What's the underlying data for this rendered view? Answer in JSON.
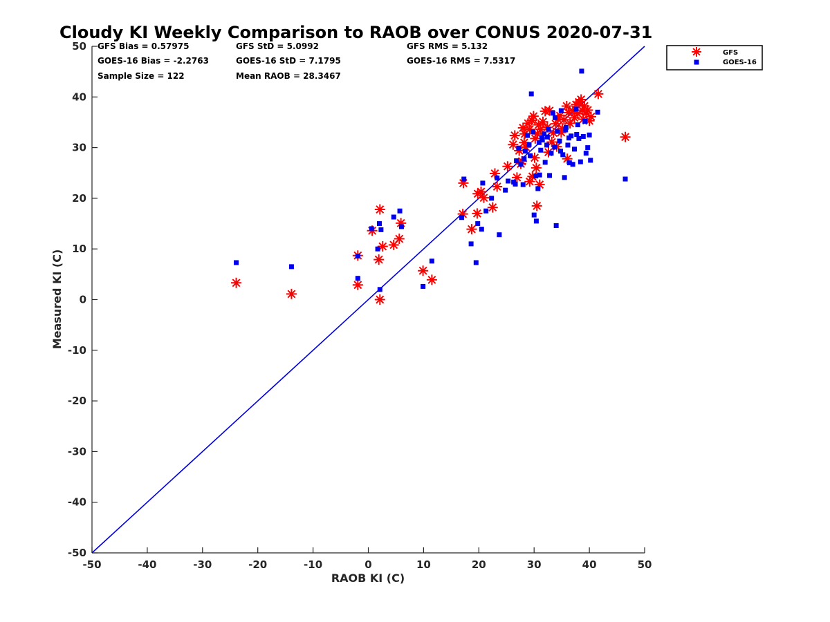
{
  "chart_data": {
    "type": "scatter",
    "title": "Cloudy KI Weekly Comparison to RAOB over CONUS 2020-07-31",
    "xlabel": "RAOB KI (C)",
    "ylabel": "Measured KI (C)",
    "xlim": [
      -50,
      50
    ],
    "ylim": [
      -50,
      50
    ],
    "xticks": [
      "-50",
      "-40",
      "-30",
      "-20",
      "-10",
      "0",
      "10",
      "20",
      "30",
      "40",
      "50"
    ],
    "yticks": [
      "-50",
      "-40",
      "-30",
      "-20",
      "-10",
      "0",
      "10",
      "20",
      "30",
      "40",
      "50"
    ],
    "grid": false,
    "legend_position": "outside-top-right",
    "reference_line": {
      "type": "one-to-one",
      "color": "#0000dd"
    },
    "stats": [
      "GFS Bias = 0.57975",
      "GFS StD = 5.0992",
      "GFS RMS = 5.132",
      "GOES-16 Bias = -2.2763",
      "GOES-16 StD = 7.1795",
      "GOES-16 RMS = 7.5317",
      "Sample Size = 122",
      "Mean RAOB = 28.3467"
    ],
    "series": [
      {
        "name": "GFS",
        "marker": "asterisk",
        "color": "#ff0000",
        "points": [
          [
            -23.9,
            3.3
          ],
          [
            -13.9,
            1.1
          ],
          [
            -1.9,
            8.7
          ],
          [
            -1.9,
            2.9
          ],
          [
            1.9,
            7.9
          ],
          [
            2.1,
            17.8
          ],
          [
            2.1,
            0.0
          ],
          [
            2.6,
            10.5
          ],
          [
            0.7,
            13.6
          ],
          [
            4.6,
            10.8
          ],
          [
            5.6,
            12.0
          ],
          [
            5.9,
            15.1
          ],
          [
            9.9,
            5.7
          ],
          [
            11.5,
            3.9
          ],
          [
            17.1,
            16.9
          ],
          [
            17.2,
            23.0
          ],
          [
            18.7,
            13.9
          ],
          [
            19.7,
            17.0
          ],
          [
            19.8,
            20.9
          ],
          [
            20.4,
            21.3
          ],
          [
            20.9,
            20.1
          ],
          [
            22.5,
            18.2
          ],
          [
            22.9,
            24.9
          ],
          [
            23.3,
            22.3
          ],
          [
            25.2,
            26.3
          ],
          [
            26.2,
            30.6
          ],
          [
            26.5,
            32.4
          ],
          [
            26.9,
            24.1
          ],
          [
            27.3,
            29.4
          ],
          [
            27.6,
            26.8
          ],
          [
            28.0,
            33.9
          ],
          [
            28.2,
            31.0
          ],
          [
            28.5,
            30.1
          ],
          [
            28.9,
            34.8
          ],
          [
            29.2,
            33.6
          ],
          [
            29.2,
            23.3
          ],
          [
            29.6,
            35.4
          ],
          [
            29.7,
            24.3
          ],
          [
            29.9,
            36.2
          ],
          [
            30.1,
            28.0
          ],
          [
            30.2,
            31.8
          ],
          [
            30.4,
            26.0
          ],
          [
            30.5,
            18.5
          ],
          [
            30.6,
            32.7
          ],
          [
            31.0,
            22.7
          ],
          [
            31.2,
            33.6
          ],
          [
            31.6,
            35.1
          ],
          [
            32.0,
            37.2
          ],
          [
            32.4,
            34.0
          ],
          [
            32.6,
            29.1
          ],
          [
            32.8,
            37.3
          ],
          [
            33.2,
            31.1
          ],
          [
            33.5,
            32.9
          ],
          [
            33.9,
            34.7
          ],
          [
            34.1,
            30.2
          ],
          [
            34.3,
            35.6
          ],
          [
            34.7,
            36.3
          ],
          [
            35.1,
            33.8
          ],
          [
            35.4,
            35.5
          ],
          [
            35.9,
            38.2
          ],
          [
            36.2,
            36.9
          ],
          [
            36.5,
            34.8
          ],
          [
            37.0,
            37.3
          ],
          [
            37.3,
            35.9
          ],
          [
            37.6,
            38.5
          ],
          [
            37.9,
            36.7
          ],
          [
            38.1,
            39.0
          ],
          [
            38.5,
            39.5
          ],
          [
            38.7,
            37.4
          ],
          [
            39.1,
            38.2
          ],
          [
            39.4,
            36.8
          ],
          [
            39.7,
            37.4
          ],
          [
            40.0,
            35.3
          ],
          [
            40.3,
            36.1
          ],
          [
            41.6,
            40.6
          ],
          [
            46.5,
            32.1
          ],
          [
            28.3,
            32.7
          ],
          [
            30.8,
            34.5
          ],
          [
            36.0,
            27.8
          ],
          [
            27.8,
            27.3
          ],
          [
            34.9,
            33.0
          ],
          [
            38.9,
            35.6
          ]
        ]
      },
      {
        "name": "GOES-16",
        "marker": "square",
        "color": "#0000ee",
        "points": [
          [
            -23.9,
            7.3
          ],
          [
            -13.9,
            6.5
          ],
          [
            -1.9,
            8.6
          ],
          [
            -1.9,
            4.2
          ],
          [
            0.6,
            14.0
          ],
          [
            1.7,
            10.0
          ],
          [
            2.0,
            15.0
          ],
          [
            2.1,
            2.0
          ],
          [
            2.3,
            13.8
          ],
          [
            4.6,
            16.3
          ],
          [
            5.7,
            17.5
          ],
          [
            6.0,
            14.4
          ],
          [
            9.9,
            2.6
          ],
          [
            11.5,
            7.6
          ],
          [
            16.9,
            16.2
          ],
          [
            17.3,
            23.8
          ],
          [
            18.6,
            11.0
          ],
          [
            19.5,
            7.3
          ],
          [
            19.8,
            15.0
          ],
          [
            20.5,
            13.9
          ],
          [
            20.7,
            23.0
          ],
          [
            21.3,
            17.5
          ],
          [
            22.3,
            20.0
          ],
          [
            23.3,
            24.0
          ],
          [
            23.7,
            12.8
          ],
          [
            24.8,
            21.6
          ],
          [
            25.3,
            23.4
          ],
          [
            26.3,
            23.2
          ],
          [
            26.6,
            22.8
          ],
          [
            26.8,
            27.4
          ],
          [
            27.2,
            29.9
          ],
          [
            27.6,
            26.7
          ],
          [
            28.0,
            22.7
          ],
          [
            28.2,
            27.8
          ],
          [
            28.4,
            29.3
          ],
          [
            28.8,
            32.4
          ],
          [
            29.1,
            30.6
          ],
          [
            29.3,
            28.4
          ],
          [
            29.5,
            40.6
          ],
          [
            29.8,
            33.1
          ],
          [
            30.0,
            16.7
          ],
          [
            30.3,
            24.4
          ],
          [
            30.4,
            15.5
          ],
          [
            30.7,
            21.9
          ],
          [
            31.0,
            24.6
          ],
          [
            31.2,
            29.5
          ],
          [
            31.5,
            31.5
          ],
          [
            31.8,
            32.7
          ],
          [
            32.0,
            27.1
          ],
          [
            32.3,
            30.5
          ],
          [
            32.6,
            33.6
          ],
          [
            32.8,
            24.5
          ],
          [
            33.1,
            28.9
          ],
          [
            33.4,
            36.8
          ],
          [
            33.7,
            30.1
          ],
          [
            34.0,
            14.6
          ],
          [
            34.2,
            33.2
          ],
          [
            34.6,
            31.3
          ],
          [
            34.9,
            37.3
          ],
          [
            35.2,
            28.6
          ],
          [
            35.5,
            24.1
          ],
          [
            35.8,
            34.0
          ],
          [
            36.1,
            30.5
          ],
          [
            36.4,
            27.0
          ],
          [
            36.7,
            32.3
          ],
          [
            37.0,
            26.7
          ],
          [
            37.3,
            29.7
          ],
          [
            37.6,
            37.6
          ],
          [
            37.9,
            34.5
          ],
          [
            38.1,
            31.8
          ],
          [
            38.4,
            27.2
          ],
          [
            38.6,
            45.1
          ],
          [
            38.9,
            32.2
          ],
          [
            39.2,
            35.2
          ],
          [
            39.4,
            28.9
          ],
          [
            39.7,
            30.0
          ],
          [
            40.0,
            32.5
          ],
          [
            40.2,
            27.5
          ],
          [
            41.5,
            37.0
          ],
          [
            46.5,
            23.8
          ],
          [
            31.4,
            32.0
          ],
          [
            33.8,
            35.9
          ],
          [
            35.7,
            33.5
          ],
          [
            37.7,
            32.6
          ],
          [
            30.9,
            31.0
          ],
          [
            32.4,
            32.1
          ],
          [
            34.8,
            29.3
          ],
          [
            36.3,
            31.9
          ]
        ]
      }
    ]
  }
}
